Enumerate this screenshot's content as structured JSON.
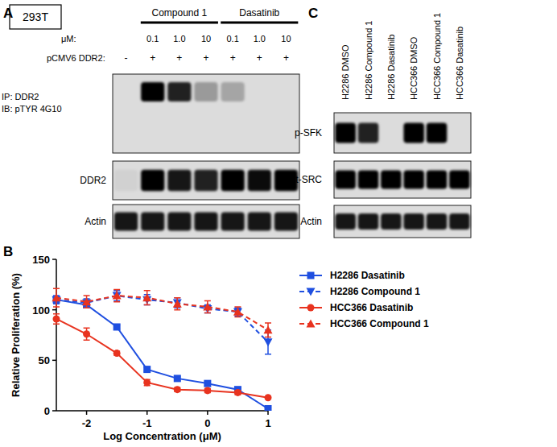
{
  "panel_labels": [
    "A",
    "B",
    "C"
  ],
  "blot_a": {
    "cell_line": "293T",
    "dose_label": "μM:",
    "plasmid_label": "pCMV6 DDR2:",
    "plasmid": [
      "-",
      "+",
      "+",
      "+",
      "+",
      "+",
      "+"
    ],
    "groups": [
      {
        "label": "Compound 1",
        "doses": [
          "0.1",
          "1.0",
          "10"
        ]
      },
      {
        "label": "Dasatinib",
        "doses": [
          "0.1",
          "1.0",
          "10"
        ]
      }
    ],
    "rows": [
      {
        "labels": [
          "IP: DDR2",
          "IB: pTYR 4G10"
        ],
        "intensity": [
          0,
          1,
          0.85,
          0.3,
          0.25,
          0,
          0
        ]
      },
      {
        "labels": [
          "DDR2"
        ],
        "intensity": [
          0.05,
          1,
          0.9,
          0.85,
          1,
          0.95,
          1
        ]
      },
      {
        "labels": [
          "Actin"
        ],
        "intensity": [
          0.9,
          0.9,
          0.9,
          0.9,
          0.9,
          0.9,
          0.9
        ]
      }
    ]
  },
  "blot_c": {
    "lanes": [
      "H2286 DMSO",
      "H2286 Compound 1",
      "H2286 Dasatinib",
      "HCC366 DMSO",
      "HCC366 Compound 1",
      "HCC366 Dasatinib"
    ],
    "rows": [
      {
        "label": "p-SFK",
        "intensity": [
          1,
          0.85,
          0,
          1,
          1,
          0
        ]
      },
      {
        "label": "t-SRC",
        "intensity": [
          1,
          1,
          1,
          1,
          1,
          1
        ]
      },
      {
        "label": "Actin",
        "intensity": [
          0.9,
          0.9,
          0.9,
          0.9,
          0.9,
          0.9
        ]
      }
    ]
  },
  "chart_data": {
    "type": "line",
    "x_label": "Log Concentration (μM)",
    "y_label": "Relative Proliferation (%)",
    "x": [
      -2.5,
      -2,
      -1.5,
      -1,
      -0.5,
      0,
      0.5,
      1
    ],
    "xlim": [
      -2.5,
      1
    ],
    "xticks": [
      -2,
      -1,
      0,
      1
    ],
    "ylim": [
      0,
      150
    ],
    "yticks": [
      0,
      50,
      100,
      150
    ],
    "legend": "right",
    "series": [
      {
        "name": "H2286 Dasatinib",
        "color": "#1f4fe0",
        "marker": "square",
        "line_style": "solid",
        "values": [
          110,
          105,
          83,
          41,
          32,
          27,
          21,
          2
        ],
        "errors": [
          3,
          3,
          2,
          2,
          2,
          2,
          2,
          1
        ]
      },
      {
        "name": "H2286 Compound 1",
        "color": "#1f4fe0",
        "marker": "triangle-down",
        "line_style": "dashed",
        "values": [
          110,
          107,
          114,
          110,
          107,
          101,
          98,
          68
        ],
        "errors": [
          4,
          4,
          5,
          5,
          5,
          4,
          4,
          12
        ]
      },
      {
        "name": "HCC366 Dasatinib",
        "color": "#e8331f",
        "marker": "circle",
        "line_style": "solid",
        "values": [
          91,
          76,
          57,
          28,
          21,
          20,
          18,
          13
        ],
        "errors": [
          5,
          6,
          2,
          3,
          2,
          2,
          2,
          1
        ]
      },
      {
        "name": "HCC366 Compound 1",
        "color": "#e8331f",
        "marker": "triangle-up",
        "line_style": "dashed",
        "values": [
          112,
          108,
          114,
          112,
          106,
          103,
          98,
          80
        ],
        "errors": [
          9,
          6,
          6,
          7,
          6,
          6,
          5,
          7
        ]
      }
    ]
  }
}
